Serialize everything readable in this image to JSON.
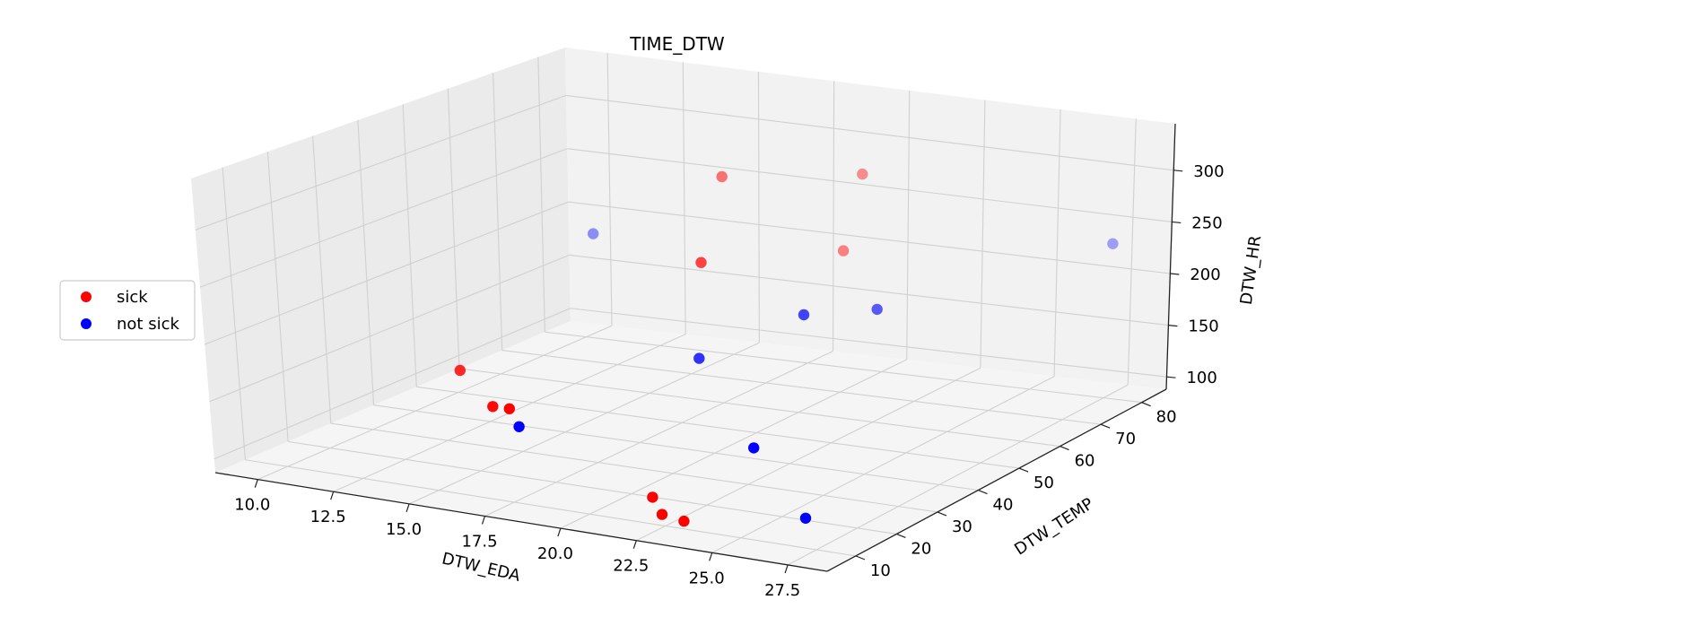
{
  "chart_data": {
    "type": "scatter",
    "projection": "3d",
    "title": "TIME_DTW",
    "xlabel": "DTW_EDA",
    "ylabel": "DTW_TEMP",
    "zlabel": "DTW_HR",
    "grid": true,
    "legend_position": "left",
    "x_ticks": [
      "10.0",
      "12.5",
      "15.0",
      "17.5",
      "20.0",
      "22.5",
      "25.0",
      "27.5"
    ],
    "y_ticks": [
      "10",
      "20",
      "30",
      "40",
      "50",
      "60",
      "70",
      "80"
    ],
    "z_ticks": [
      "100",
      "150",
      "200",
      "250",
      "300"
    ],
    "xlim": [
      8.6,
      28.8
    ],
    "ylim": [
      3,
      86
    ],
    "zlim": [
      88,
      345
    ],
    "series": [
      {
        "name": "sick",
        "color": "#ff0000",
        "points": [
          {
            "x": 15.8,
            "y": 72,
            "z": 272
          },
          {
            "x": 19.6,
            "y": 78,
            "z": 278
          },
          {
            "x": 16.8,
            "y": 60,
            "z": 216
          },
          {
            "x": 19.4,
            "y": 75,
            "z": 210
          },
          {
            "x": 14.6,
            "y": 30,
            "z": 125
          },
          {
            "x": 9.8,
            "y": 52,
            "z": 104
          },
          {
            "x": 12.6,
            "y": 40,
            "z": 102
          },
          {
            "x": 21.4,
            "y": 15,
            "z": 100
          },
          {
            "x": 22.4,
            "y": 10,
            "z": 98
          },
          {
            "x": 23.4,
            "y": 8,
            "z": 100
          }
        ]
      },
      {
        "name": "not sick",
        "color": "#0000ff",
        "points": [
          {
            "x": 10.6,
            "y": 78,
            "z": 190
          },
          {
            "x": 20.2,
            "y": 60,
            "z": 180
          },
          {
            "x": 21.8,
            "y": 66,
            "z": 180
          },
          {
            "x": 17.4,
            "y": 55,
            "z": 138
          },
          {
            "x": 14.9,
            "y": 30,
            "z": 110
          },
          {
            "x": 22.0,
            "y": 35,
            "z": 110
          },
          {
            "x": 27.4,
            "y": 82,
            "z": 232
          },
          {
            "x": 26.6,
            "y": 14,
            "z": 105
          }
        ]
      }
    ]
  }
}
